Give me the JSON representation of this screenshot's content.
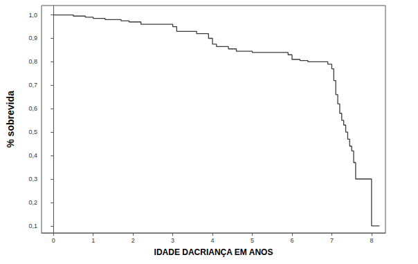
{
  "chart_data": {
    "type": "step",
    "x_label": "IDADE DACRIANÇA EM ANOS",
    "y_label": "% sobrevida",
    "color": "#3a3a3a",
    "line_style": "solid",
    "marker": "none",
    "grid": false,
    "x": [
      0,
      0.5,
      0.8,
      1.0,
      1.3,
      1.7,
      1.9,
      2.2,
      3.0,
      3.1,
      3.6,
      3.9,
      4.0,
      4.1,
      4.4,
      4.6,
      5.0,
      5.9,
      6.0,
      6.2,
      6.4,
      6.9,
      7.0,
      7.05,
      7.1,
      7.15,
      7.2,
      7.25,
      7.3,
      7.35,
      7.4,
      7.45,
      7.5,
      7.55,
      7.6,
      8.0,
      8.2
    ],
    "values": [
      1.0,
      0.995,
      0.99,
      0.985,
      0.98,
      0.975,
      0.97,
      0.96,
      0.95,
      0.93,
      0.92,
      0.9,
      0.875,
      0.865,
      0.855,
      0.845,
      0.84,
      0.83,
      0.81,
      0.805,
      0.8,
      0.79,
      0.77,
      0.72,
      0.66,
      0.62,
      0.58,
      0.55,
      0.53,
      0.5,
      0.47,
      0.44,
      0.42,
      0.37,
      0.3,
      0.1,
      0.1
    ],
    "xlim": [
      -0.3,
      8.35
    ],
    "xticks": [
      0,
      1,
      2,
      3,
      4,
      5,
      6,
      7,
      8
    ],
    "ylim": [
      0.07,
      1.04
    ],
    "yticks": [
      {
        "value": 0.1,
        "label": "0,1"
      },
      {
        "value": 0.2,
        "label": "0,2"
      },
      {
        "value": 0.3,
        "label": "0,3"
      },
      {
        "value": 0.4,
        "label": "0,4"
      },
      {
        "value": 0.5,
        "label": "0,5"
      },
      {
        "value": 0.6,
        "label": "0,6"
      },
      {
        "value": 0.7,
        "label": "0,7"
      },
      {
        "value": 0.8,
        "label": "0,8"
      },
      {
        "value": 0.9,
        "label": "0,9"
      },
      {
        "value": 1.0,
        "label": "1,0"
      }
    ]
  }
}
